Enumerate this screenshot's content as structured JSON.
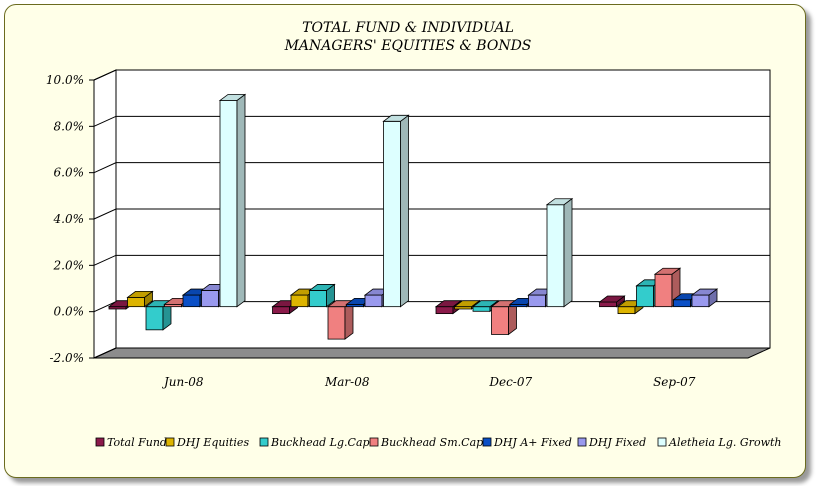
{
  "chart_data": {
    "type": "bar",
    "title": [
      "TOTAL FUND  & INDIVIDUAL",
      "MANAGERS' EQUITIES & BONDS"
    ],
    "categories": [
      "Jun-08",
      "Mar-08",
      "Dec-07",
      "Sep-07"
    ],
    "yticks": [
      "-2.0%",
      "0.0%",
      "2.0%",
      "4.0%",
      "6.0%",
      "8.0%",
      "10.0%"
    ],
    "ylim": [
      -2,
      10
    ],
    "grid": true,
    "legend_position": "bottom",
    "series": [
      {
        "name": "Total Fund",
        "color": "#8b1a4a",
        "values": [
          -0.1,
          -0.3,
          -0.3,
          0.2
        ]
      },
      {
        "name": "DHJ Equities",
        "color": "#ddb400",
        "values": [
          0.4,
          0.5,
          -0.1,
          -0.3
        ]
      },
      {
        "name": "Buckhead Lg.Cap",
        "color": "#33cccc",
        "values": [
          -1.0,
          0.7,
          -0.2,
          0.9
        ]
      },
      {
        "name": "Buckhead Sm.Cap",
        "color": "#f08080",
        "values": [
          0.1,
          -1.4,
          -1.2,
          1.4
        ]
      },
      {
        "name": "DHJ A+ Fixed",
        "color": "#0a4fc6",
        "values": [
          0.5,
          0.1,
          0.1,
          0.3
        ]
      },
      {
        "name": "DHJ Fixed",
        "color": "#9999ee",
        "values": [
          0.7,
          0.5,
          0.5,
          0.5
        ]
      },
      {
        "name": "Aletheia Lg. Growth",
        "color": "#ddffff",
        "values": [
          8.9,
          8.0,
          4.4,
          null
        ]
      }
    ]
  }
}
